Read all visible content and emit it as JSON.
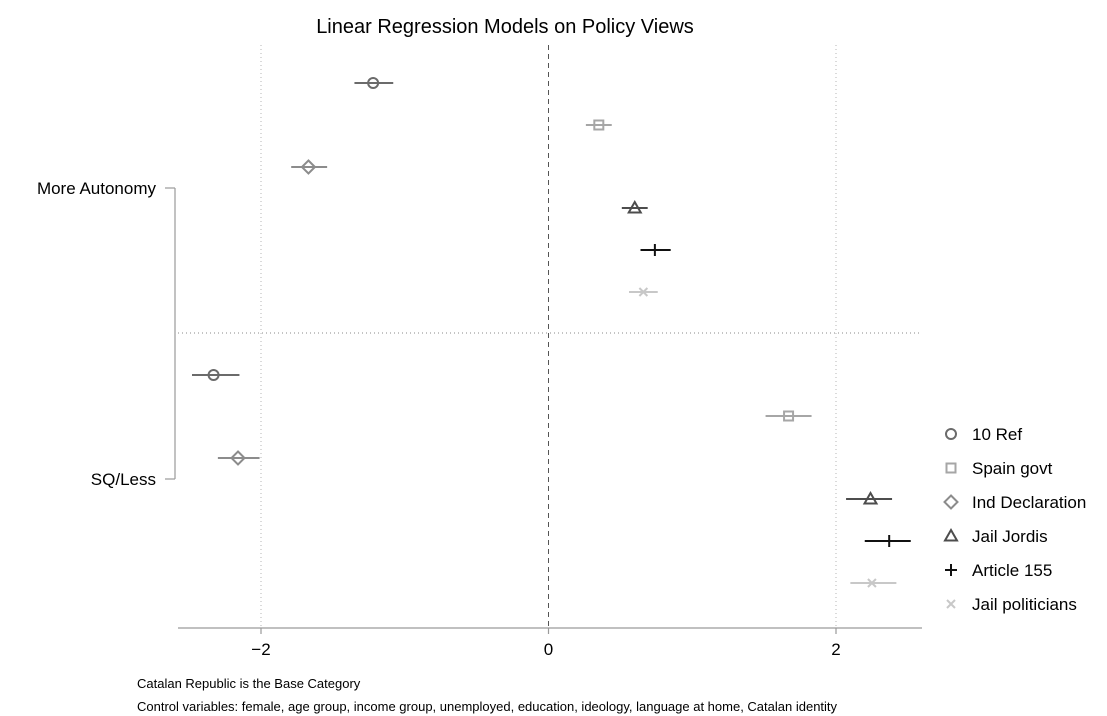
{
  "chart_data": {
    "type": "scatter",
    "subtype": "coefficient-plot",
    "title": "Linear Regression Models on Policy Views",
    "xlabel": "",
    "ylabel": "",
    "xlim": [
      -2.6,
      2.6
    ],
    "x_ticks": [
      -2,
      0,
      2
    ],
    "x_tick_labels": [
      "−2",
      "0",
      "2"
    ],
    "groups": [
      "More Autonomy",
      "SQ/Less"
    ],
    "grid": "dotted vertical lines at ticks; dotted horizontal separator between groups; dashed vertical line at 0",
    "legend_position": "right",
    "series": [
      {
        "name": "10 Ref",
        "marker": "circle",
        "color": "#6b6b6b",
        "points": [
          {
            "group": "More Autonomy",
            "estimate": -1.22,
            "ci": [
              -1.35,
              -1.08
            ]
          },
          {
            "group": "SQ/Less",
            "estimate": -2.33,
            "ci": [
              -2.48,
              -2.15
            ]
          }
        ]
      },
      {
        "name": "Spain govt",
        "marker": "square",
        "color": "#a6a6a6",
        "points": [
          {
            "group": "More Autonomy",
            "estimate": 0.35,
            "ci": [
              0.26,
              0.44
            ]
          },
          {
            "group": "SQ/Less",
            "estimate": 1.67,
            "ci": [
              1.51,
              1.83
            ]
          }
        ]
      },
      {
        "name": "Ind Declaration",
        "marker": "diamond",
        "color": "#8c8c8c",
        "points": [
          {
            "group": "More Autonomy",
            "estimate": -1.67,
            "ci": [
              -1.79,
              -1.54
            ]
          },
          {
            "group": "SQ/Less",
            "estimate": -2.16,
            "ci": [
              -2.3,
              -2.01
            ]
          }
        ]
      },
      {
        "name": "Jail Jordis",
        "marker": "triangle",
        "color": "#4d4d4d",
        "points": [
          {
            "group": "More Autonomy",
            "estimate": 0.6,
            "ci": [
              0.51,
              0.69
            ]
          },
          {
            "group": "SQ/Less",
            "estimate": 2.24,
            "ci": [
              2.07,
              2.39
            ]
          }
        ]
      },
      {
        "name": "Article 155",
        "marker": "plus",
        "color": "#111111",
        "points": [
          {
            "group": "More Autonomy",
            "estimate": 0.74,
            "ci": [
              0.64,
              0.85
            ]
          },
          {
            "group": "SQ/Less",
            "estimate": 2.37,
            "ci": [
              2.2,
              2.52
            ]
          }
        ]
      },
      {
        "name": "Jail politicians",
        "marker": "x",
        "color": "#c8c8c8",
        "points": [
          {
            "group": "More Autonomy",
            "estimate": 0.66,
            "ci": [
              0.56,
              0.76
            ]
          },
          {
            "group": "SQ/Less",
            "estimate": 2.25,
            "ci": [
              2.1,
              2.42
            ]
          }
        ]
      }
    ],
    "annotations": [
      "Catalan Republic is the Base Category",
      "Control variables: female, age group, income group, unemployed, education, ideology, language at home, Catalan identity"
    ]
  }
}
